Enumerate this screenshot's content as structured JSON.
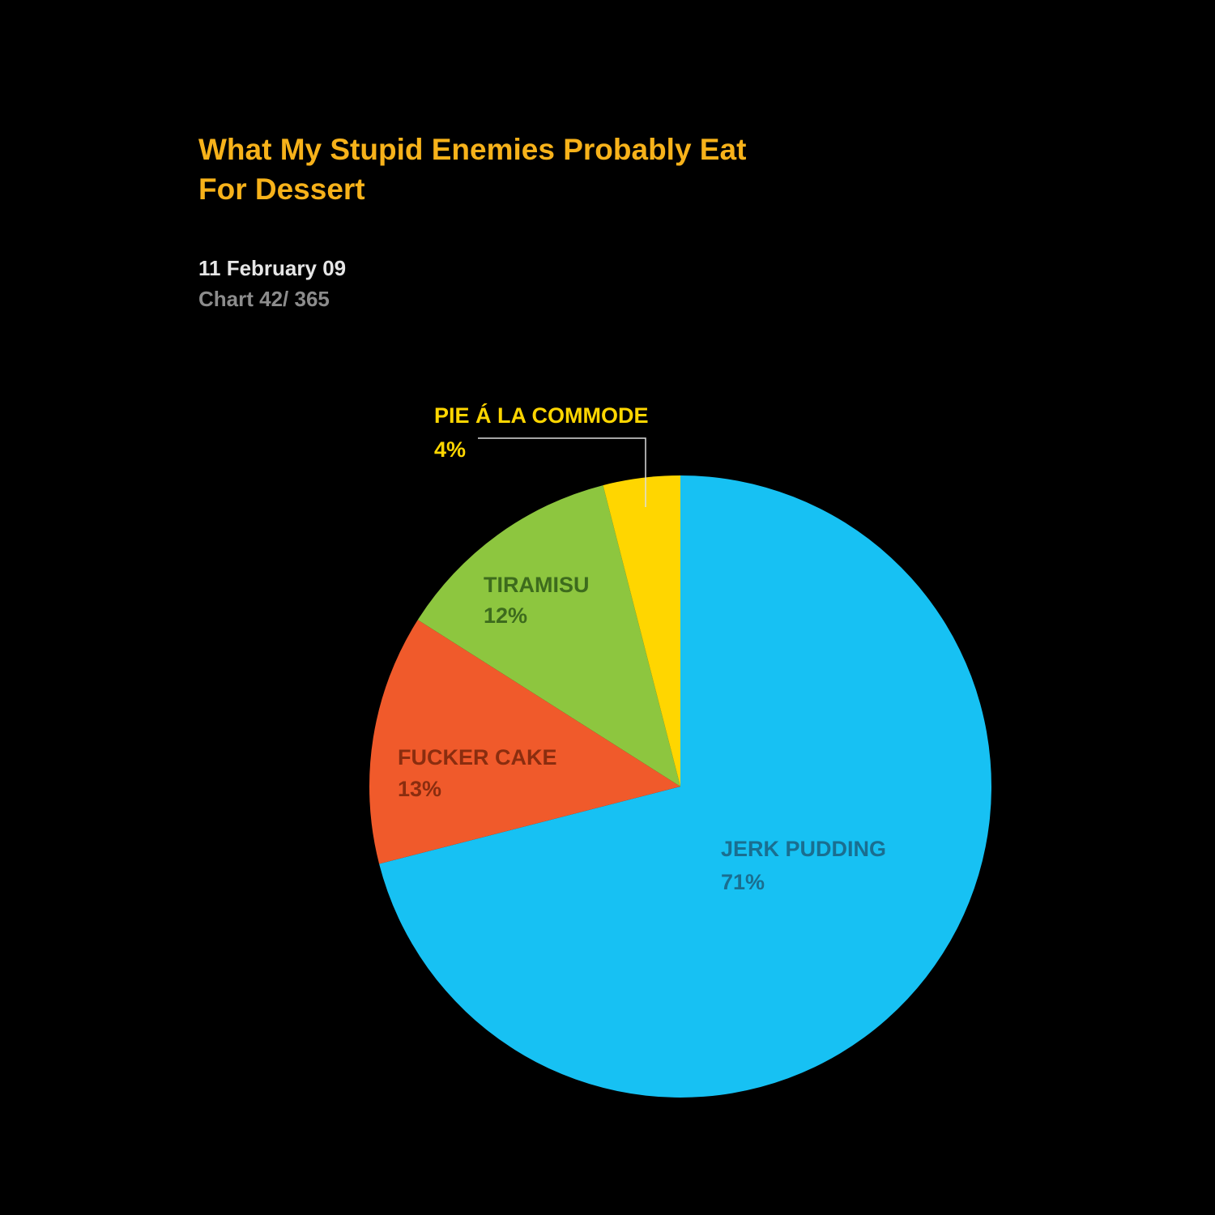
{
  "chart_data": {
    "type": "pie",
    "title": "What My Stupid Enemies Probably Eat For Dessert",
    "subtitle": "11 February 09",
    "note": "Chart 42/ 365",
    "categories": [
      "JERK PUDDING",
      "FUCKER CAKE",
      "TIRAMISU",
      "PIE Á LA COMMODE"
    ],
    "values": [
      71,
      13,
      12,
      4
    ],
    "value_labels": [
      "71%",
      "13%",
      "12%",
      "4%"
    ],
    "colors": [
      "#17c1f3",
      "#f05a2b",
      "#8dc63f",
      "#ffd600"
    ]
  }
}
